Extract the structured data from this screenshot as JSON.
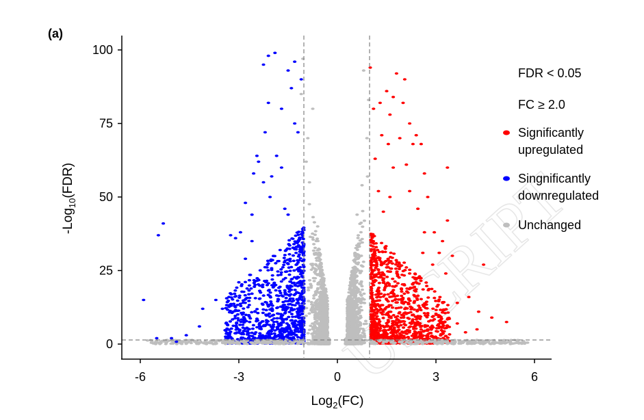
{
  "chart_data": {
    "type": "scatter",
    "panel_label": "(a)",
    "xlabel_main": "Log",
    "xlabel_sub": "2",
    "xlabel_tail": "(FC)",
    "ylabel_main": "-Log",
    "ylabel_sub": "10",
    "ylabel_tail": "(FDR)",
    "xlim": [
      -6.5,
      6.5
    ],
    "ylim": [
      -5,
      105
    ],
    "x_ticks": [
      -6,
      -3,
      0,
      3,
      6
    ],
    "x_tick_labels": [
      "-6",
      "-3",
      "0",
      "3",
      "6"
    ],
    "y_ticks": [
      0,
      25,
      50,
      75,
      100
    ],
    "y_tick_labels": [
      "0",
      "25",
      "50",
      "75",
      "100"
    ],
    "thresholds": {
      "log2fc": [
        -1,
        1
      ],
      "neg_log10_fdr": 1.3
    },
    "legend": {
      "placement": "right",
      "header1": "FDR < 0.05",
      "header2": "FC ≥ 2.0",
      "up_line1": "Significantly",
      "up_line2": "upregulated",
      "down_line1": "Singnificantly",
      "down_line2": "downregulated",
      "unchanged": "Unchanged"
    },
    "colors": {
      "up": "#ff0000",
      "down": "#0000ff",
      "unchanged": "#bebebe",
      "threshold": "#808080"
    },
    "series": [
      {
        "name": "Significantly upregulated",
        "points": [
          [
            1.0,
            94
          ],
          [
            1.1,
            80
          ],
          [
            1.15,
            63
          ],
          [
            1.3,
            82
          ],
          [
            1.35,
            71
          ],
          [
            1.4,
            45
          ],
          [
            1.5,
            86
          ],
          [
            1.6,
            78
          ],
          [
            1.7,
            60
          ],
          [
            1.8,
            92
          ],
          [
            1.9,
            70
          ],
          [
            2.0,
            82
          ],
          [
            2.1,
            61
          ],
          [
            2.2,
            75
          ],
          [
            2.3,
            68
          ],
          [
            1.7,
            84
          ],
          [
            1.55,
            68
          ],
          [
            2.4,
            71
          ],
          [
            2.05,
            90
          ],
          [
            2.55,
            68
          ],
          [
            2.65,
            58
          ],
          [
            2.75,
            50
          ],
          [
            3.35,
            42
          ],
          [
            2.45,
            46
          ],
          [
            1.25,
            52
          ],
          [
            1.6,
            50
          ],
          [
            2.2,
            52
          ],
          [
            2.65,
            38
          ],
          [
            3.2,
            35
          ],
          [
            2.95,
            38
          ],
          [
            3.1,
            31
          ],
          [
            3.35,
            60
          ],
          [
            3.5,
            30
          ],
          [
            3.3,
            24
          ],
          [
            4.0,
            16
          ],
          [
            4.3,
            11
          ],
          [
            4.45,
            27
          ],
          [
            3.65,
            14
          ],
          [
            2.9,
            27
          ],
          [
            2.6,
            31
          ],
          [
            2.5,
            23
          ],
          [
            5.15,
            7.5
          ],
          [
            3.2,
            6
          ],
          [
            3.65,
            7
          ],
          [
            4.7,
            9
          ],
          [
            4.25,
            5
          ],
          [
            3.9,
            4
          ],
          [
            2.9,
            8
          ]
        ]
      },
      {
        "name": "Singnificantly downregulated",
        "points": [
          [
            -1.1,
            90
          ],
          [
            -1.5,
            93
          ],
          [
            -1.9,
            99
          ],
          [
            -2.1,
            98
          ],
          [
            -2.25,
            95
          ],
          [
            -1.3,
            96
          ],
          [
            -1.7,
            80
          ],
          [
            -1.4,
            87
          ],
          [
            -1.3,
            75
          ],
          [
            -2.1,
            82
          ],
          [
            -2.2,
            72
          ],
          [
            -1.85,
            64
          ],
          [
            -1.7,
            60
          ],
          [
            -2.4,
            62
          ],
          [
            -2.0,
            57
          ],
          [
            -1.2,
            72
          ],
          [
            -2.45,
            64
          ],
          [
            -2.55,
            58
          ],
          [
            -2.25,
            55
          ],
          [
            -2.8,
            48
          ],
          [
            -2.95,
            38
          ],
          [
            -3.1,
            36
          ],
          [
            -3.25,
            37
          ],
          [
            -3.7,
            15
          ],
          [
            -4.1,
            12
          ],
          [
            -4.2,
            6
          ],
          [
            -4.6,
            3
          ],
          [
            -4.9,
            0.8
          ],
          [
            -5.05,
            2
          ],
          [
            -5.5,
            2
          ],
          [
            -5.45,
            37
          ],
          [
            -5.3,
            41
          ],
          [
            -5.9,
            15
          ],
          [
            -2.05,
            50
          ],
          [
            -2.6,
            44
          ],
          [
            -1.6,
            46
          ],
          [
            -1.5,
            44
          ],
          [
            -2.8,
            29
          ],
          [
            -3.0,
            21
          ],
          [
            -3.3,
            16
          ],
          [
            -3.5,
            12
          ],
          [
            -2.6,
            35
          ]
        ]
      },
      {
        "name": "Unchanged",
        "points": [
          [
            -1.05,
            97
          ],
          [
            -1.1,
            85
          ],
          [
            -0.9,
            70
          ],
          [
            -0.85,
            55
          ],
          [
            0.8,
            93
          ],
          [
            0.9,
            70
          ],
          [
            0.75,
            54
          ],
          [
            0.6,
            44
          ],
          [
            -0.6,
            40
          ],
          [
            -0.75,
            80
          ],
          [
            0.95,
            83
          ],
          [
            -0.95,
            62
          ]
        ]
      }
    ]
  }
}
